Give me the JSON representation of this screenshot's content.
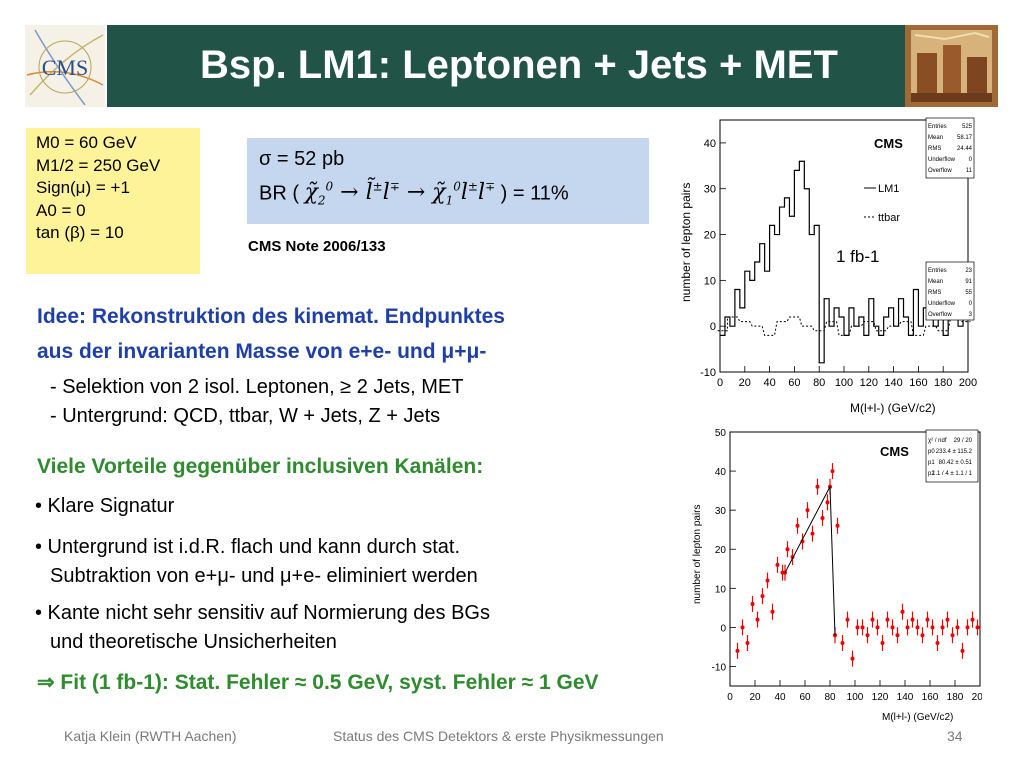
{
  "header": {
    "title": "Bsp. LM1: Leptonen + Jets + MET",
    "logo_text": "CMS",
    "bg_color": "#215447"
  },
  "params": {
    "m0": "M0 = 60 GeV",
    "m12": "M1/2 = 250 GeV",
    "sign": "Sign(μ) = +1",
    "a0": "A0 = 0",
    "tanb": "tan (β) = 10"
  },
  "sigma": {
    "xsec": "σ = 52 pb",
    "br_prefix": "BR (",
    "br_suffix": ") = 11%"
  },
  "cms_note": "CMS Note 2006/133",
  "idee": {
    "line1": "Idee: Rekonstruktion des kinemat. Endpunktes",
    "line2": "aus der invarianten Masse von e+e- und μ+μ-",
    "sel1": "- Selektion von 2 isol. Leptonen, ≥ 2 Jets, MET",
    "sel2": "- Untergrund: QCD, ttbar, W + Jets, Z + Jets"
  },
  "vorteile": {
    "heading": "Viele Vorteile gegenüber inclusiven Kanälen:",
    "b1": "• Klare Signatur",
    "b2a": "• Untergrund ist i.d.R. flach und kann durch stat.",
    "b2b": "Subtraktion von e+μ- und μ+e-  eliminiert werden",
    "b3a": "• Kante nicht sehr sensitiv auf Normierung des BGs",
    "b3b": "und theoretische Unsicherheiten"
  },
  "fit": "⇒ Fit (1 fb-1): Stat. Fehler ≈ 0.5 GeV, syst. Fehler ≈ 1 GeV",
  "footer": {
    "author": "Katja Klein (RWTH Aachen)",
    "talk": "Status des CMS Detektors & erste Physikmessungen",
    "page": "34"
  },
  "plot_top": {
    "cms_label": "CMS",
    "ylabel": "number of lepton pairs",
    "xlabel": "M(l+l-) (GeV/c2)",
    "legend_lm1": "LM1",
    "legend_ttbar": "ttbar",
    "lumi": "1 fb-1",
    "stats1": [
      [
        "Entries",
        "525"
      ],
      [
        "Mean",
        "58.17"
      ],
      [
        "RMS",
        "24.44"
      ],
      [
        "Underflow",
        "0"
      ],
      [
        "Overflow",
        "11"
      ]
    ],
    "stats2": [
      [
        "Entries",
        "23"
      ],
      [
        "Mean",
        "91"
      ],
      [
        "RMS",
        "55"
      ],
      [
        "Underflow",
        "0"
      ],
      [
        "Overflow",
        "3"
      ]
    ]
  },
  "plot_bottom": {
    "cms_label": "CMS",
    "ylabel": "number of lepton pairs",
    "xlabel": "M(l+l-) (GeV/c2)",
    "fit_rows": [
      [
        "χ² / ndf",
        "29 / 20"
      ],
      [
        "p0",
        "233.4 ± 115.2"
      ],
      [
        "p1",
        "80.42 ± 0.51"
      ],
      [
        "p2",
        "1.1 / 4 ± 1.1 / 1"
      ]
    ]
  },
  "chart_data": [
    {
      "type": "line",
      "title": "",
      "xlabel": "M(l+l-) (GeV/c2)",
      "ylabel": "number of lepton pairs",
      "xlim": [
        0,
        200
      ],
      "ylim": [
        -10,
        45
      ],
      "x_ticks": [
        0,
        20,
        40,
        60,
        80,
        100,
        120,
        140,
        160,
        180,
        200
      ],
      "y_ticks": [
        -10,
        0,
        10,
        20,
        30,
        40
      ],
      "series": [
        {
          "name": "LM1",
          "x": [
            2,
            6,
            10,
            14,
            18,
            22,
            26,
            30,
            34,
            38,
            42,
            46,
            50,
            54,
            58,
            62,
            66,
            70,
            74,
            78,
            82,
            86,
            90,
            94,
            98,
            102,
            106,
            110,
            114,
            118,
            122,
            126,
            130,
            134,
            138,
            142,
            146,
            150,
            154,
            158,
            162,
            166,
            170,
            174,
            178,
            182,
            186,
            190,
            194,
            198
          ],
          "values": [
            -2,
            2,
            0,
            8,
            4,
            12,
            10,
            14,
            18,
            12,
            22,
            20,
            26,
            28,
            24,
            34,
            36,
            30,
            20,
            22,
            -8,
            6,
            0,
            4,
            2,
            -2,
            4,
            0,
            2,
            -2,
            6,
            0,
            -2,
            2,
            4,
            0,
            6,
            2,
            -2,
            8,
            0,
            4,
            2,
            0,
            6,
            -2,
            2,
            8,
            0,
            4
          ]
        },
        {
          "name": "ttbar",
          "x": [
            2,
            10,
            20,
            30,
            40,
            50,
            60,
            70,
            80,
            90,
            100,
            110,
            120,
            130,
            140,
            150,
            160,
            170,
            180,
            190,
            198
          ],
          "values": [
            -1,
            2,
            1,
            0,
            -2,
            1,
            2,
            0,
            -1,
            1,
            -2,
            0,
            1,
            -1,
            0,
            1,
            -2,
            0,
            -1,
            2,
            1
          ]
        }
      ]
    },
    {
      "type": "scatter",
      "title": "",
      "xlabel": "M(l+l-) (GeV/c2)",
      "ylabel": "number of lepton pairs",
      "xlim": [
        0,
        200
      ],
      "ylim": [
        -15,
        50
      ],
      "x_ticks": [
        0,
        20,
        40,
        60,
        80,
        100,
        120,
        140,
        160,
        180,
        200
      ],
      "y_ticks": [
        -10,
        0,
        10,
        20,
        30,
        40,
        50
      ],
      "series": [
        {
          "name": "",
          "x": [
            6,
            10,
            14,
            18,
            22,
            26,
            30,
            34,
            38,
            42,
            46,
            50,
            54,
            58,
            62,
            66,
            70,
            74,
            78,
            82,
            86,
            90,
            94,
            98,
            102,
            106,
            110,
            114,
            118,
            122,
            126,
            130,
            134,
            138,
            142,
            146,
            150,
            154,
            158,
            162,
            166,
            170,
            174,
            178,
            182,
            186,
            190,
            194,
            198
          ],
          "values": [
            -6,
            0,
            -4,
            6,
            2,
            8,
            12,
            4,
            16,
            14,
            20,
            18,
            26,
            22,
            30,
            24,
            36,
            28,
            32,
            40,
            26,
            -4,
            2,
            -8,
            0,
            0,
            -2,
            2,
            0,
            -4,
            2,
            0,
            -2,
            4,
            0,
            2,
            0,
            -2,
            2,
            0,
            -4,
            0,
            2,
            -2,
            0,
            -6,
            0,
            2,
            0
          ]
        },
        {
          "name": "",
          "x": [
            44,
            80,
            84
          ],
          "values": [
            14,
            36,
            -2
          ]
        }
      ]
    }
  ]
}
